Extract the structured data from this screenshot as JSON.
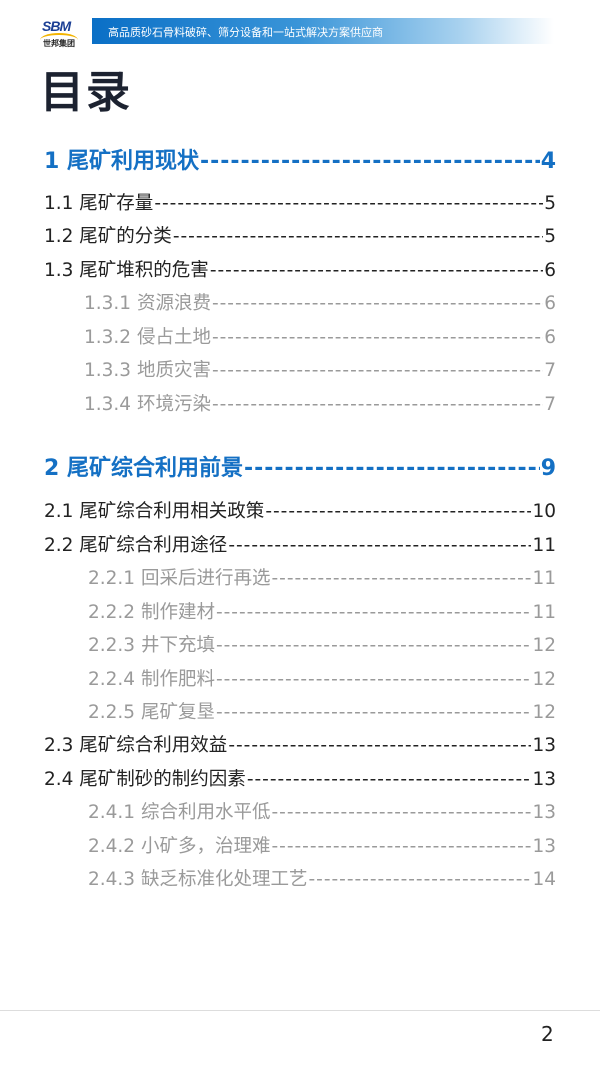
{
  "header": {
    "logo_text": "SBM",
    "logo_cn": "世邦集团",
    "slogan": "高品质砂石骨料破碎、筛分设备和一站式解决方案供应商"
  },
  "title": "目录",
  "toc": [
    {
      "level": 1,
      "text": "1  尾矿利用现状",
      "page": "4"
    },
    {
      "level": 2,
      "text": "1.1 尾矿存量",
      "page": "5"
    },
    {
      "level": 2,
      "text": "1.2 尾矿的分类",
      "page": "5"
    },
    {
      "level": 2,
      "text": "1.3 尾矿堆积的危害",
      "page": "6"
    },
    {
      "level": 3,
      "text": "1.3.1 资源浪费",
      "page": "6"
    },
    {
      "level": 3,
      "text": "1.3.2 侵占土地",
      "page": "6"
    },
    {
      "level": 3,
      "text": "1.3.3 地质灾害",
      "page": "7"
    },
    {
      "level": 3,
      "text": "1.3.4 环境污染",
      "page": "7"
    },
    {
      "level": 1,
      "text": "2  尾矿综合利用前景",
      "page": "9"
    },
    {
      "level": 2,
      "text": "2.1 尾矿综合利用相关政策",
      "page": "10"
    },
    {
      "level": 2,
      "text": "2.2 尾矿综合利用途径",
      "page": "11"
    },
    {
      "level": 3,
      "text": "2.2.1 回采后进行再选",
      "page": "11"
    },
    {
      "level": 3,
      "text": "2.2.2 制作建材",
      "page": "11"
    },
    {
      "level": 3,
      "text": "2.2.3 井下充填",
      "page": "12"
    },
    {
      "level": 3,
      "text": "2.2.4 制作肥料",
      "page": "12"
    },
    {
      "level": 3,
      "text": "2.2.5 尾矿复垦",
      "page": "12"
    },
    {
      "level": 2,
      "text": "2.3 尾矿综合利用效益",
      "page": "13"
    },
    {
      "level": 2,
      "text": "2.4 尾矿制砂的制约因素",
      "page": "13"
    },
    {
      "level": 3,
      "text": "2.4.1 综合利用水平低",
      "page": "13"
    },
    {
      "level": 3,
      "text": "2.4.2 小矿多，治理难",
      "page": "13"
    },
    {
      "level": 3,
      "text": "2.4.3 缺乏标准化处理工艺",
      "page": "14"
    }
  ],
  "footer": {
    "page_number": "2"
  },
  "colors": {
    "accent": "#1470c4",
    "subentry": "#9a9a9a",
    "text": "#222222"
  }
}
